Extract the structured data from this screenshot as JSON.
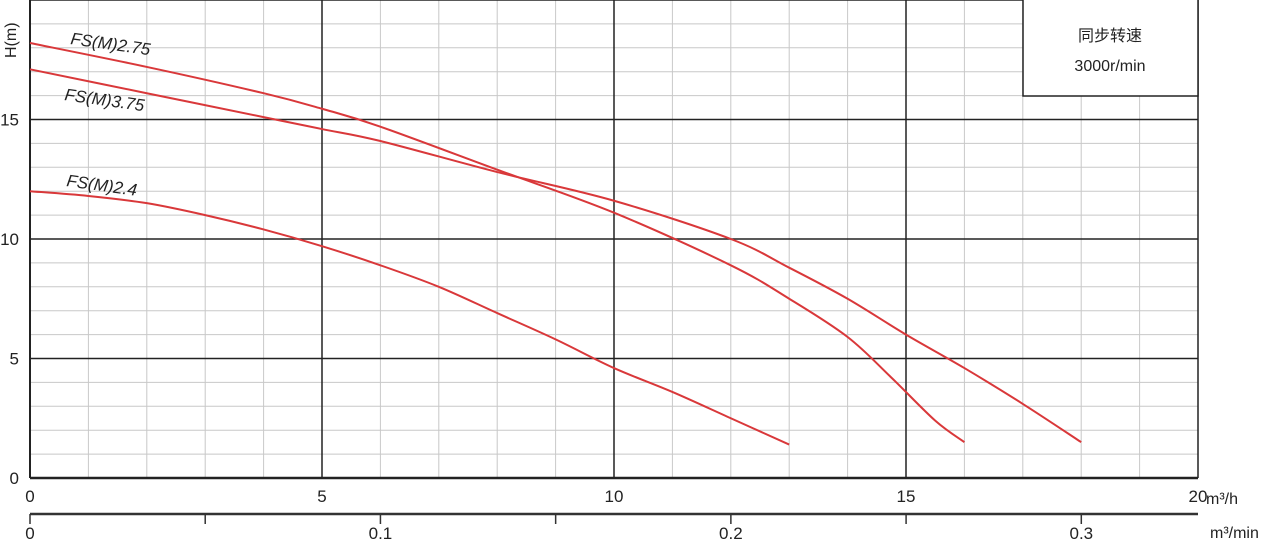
{
  "chart_data": {
    "type": "line",
    "xlabel": "m³/h",
    "ylabel": "H(m)",
    "xlim": [
      0,
      20
    ],
    "ylim": [
      0,
      20
    ],
    "x_ticks": [
      "0",
      "5",
      "10",
      "15",
      "20"
    ],
    "y_ticks": [
      "0",
      "5",
      "10",
      "15"
    ],
    "grid": true,
    "secondary_x_axis": {
      "label": "m³/min",
      "range": [
        0,
        0.3333
      ],
      "tick_labels": [
        "0",
        "0.1",
        "0.2",
        "0.3"
      ],
      "tick_values": [
        0,
        0.1,
        0.2,
        0.3
      ],
      "minor_ticks": [
        0.05,
        0.15,
        0.25
      ]
    },
    "legend_box": {
      "line1": "同步转速",
      "line2": "3000r/min",
      "placement": "top-right"
    },
    "line_color": "#d9383a",
    "series": [
      {
        "name": "FS(M)2.75",
        "points": [
          [
            0,
            18.2
          ],
          [
            2,
            17.2
          ],
          [
            4,
            16.1
          ],
          [
            5,
            15.45
          ],
          [
            6,
            14.7
          ],
          [
            8,
            12.9
          ],
          [
            10,
            11.1
          ],
          [
            12,
            8.9
          ],
          [
            13,
            7.5
          ],
          [
            14,
            5.9
          ],
          [
            14.75,
            4.2
          ],
          [
            15.5,
            2.4
          ],
          [
            16,
            1.5
          ]
        ]
      },
      {
        "name": "FS(M)3.75",
        "points": [
          [
            0,
            17.1
          ],
          [
            2,
            16.1
          ],
          [
            4,
            15.1
          ],
          [
            5,
            14.6
          ],
          [
            6,
            14.1
          ],
          [
            8,
            12.8
          ],
          [
            10,
            11.6
          ],
          [
            12,
            10
          ],
          [
            13,
            8.8
          ],
          [
            14,
            7.5
          ],
          [
            15,
            6
          ],
          [
            16,
            4.6
          ],
          [
            17,
            3.1
          ],
          [
            18,
            1.5
          ]
        ]
      },
      {
        "name": "FS(M)2.4",
        "points": [
          [
            0,
            12
          ],
          [
            1,
            11.8
          ],
          [
            2,
            11.5
          ],
          [
            3,
            11
          ],
          [
            4,
            10.4
          ],
          [
            5,
            9.7
          ],
          [
            6,
            8.9
          ],
          [
            7,
            8.0
          ],
          [
            8,
            6.9
          ],
          [
            9,
            5.8
          ],
          [
            10,
            4.6
          ],
          [
            11,
            3.6
          ],
          [
            12,
            2.5
          ],
          [
            13,
            1.4
          ]
        ]
      }
    ]
  }
}
